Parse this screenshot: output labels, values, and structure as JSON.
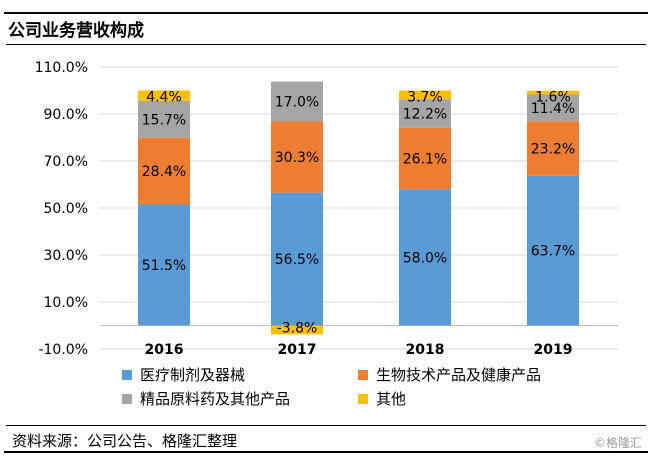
{
  "header": {
    "title": "公司业务营收构成"
  },
  "footer": {
    "source": "资料来源：公司公告、格隆汇整理",
    "watermark": "©格隆汇"
  },
  "colors": {
    "medical": "#5b9bd5",
    "bio": "#ed7d31",
    "fine": "#a5a5a5",
    "other": "#ffc000",
    "grid": "#d9d9d9",
    "axis": "#bfbfbf"
  },
  "chart_data": {
    "type": "bar",
    "stacked": true,
    "title": "公司业务营收构成",
    "categories": [
      "2016",
      "2017",
      "2018",
      "2019"
    ],
    "ylim": [
      -10,
      110
    ],
    "yticks": [
      "110.0%",
      "90.0%",
      "70.0%",
      "50.0%",
      "30.0%",
      "10.0%",
      "-10.0%"
    ],
    "ytick_values": [
      110,
      90,
      70,
      50,
      30,
      10,
      -10
    ],
    "grid": true,
    "legend_position": "bottom",
    "series": [
      {
        "name": "医疗制剂及器械",
        "color_key": "medical",
        "values": [
          51.5,
          56.5,
          58.0,
          63.7
        ],
        "labels": [
          "51.5%",
          "56.5%",
          "58.0%",
          "63.7%"
        ]
      },
      {
        "name": "生物技术产品及健康产品",
        "color_key": "bio",
        "values": [
          28.4,
          30.3,
          26.1,
          23.2
        ],
        "labels": [
          "28.4%",
          "30.3%",
          "26.1%",
          "23.2%"
        ]
      },
      {
        "name": "精品原料药及其他产品",
        "color_key": "fine",
        "values": [
          15.7,
          17.0,
          12.2,
          11.4
        ],
        "labels": [
          "15.7%",
          "17.0%",
          "12.2%",
          "11.4%"
        ]
      },
      {
        "name": "其他",
        "color_key": "other",
        "values": [
          4.4,
          -3.8,
          3.7,
          1.6
        ],
        "labels": [
          "4.4%",
          "-3.8%",
          "3.7%",
          "1.6%"
        ]
      }
    ]
  }
}
